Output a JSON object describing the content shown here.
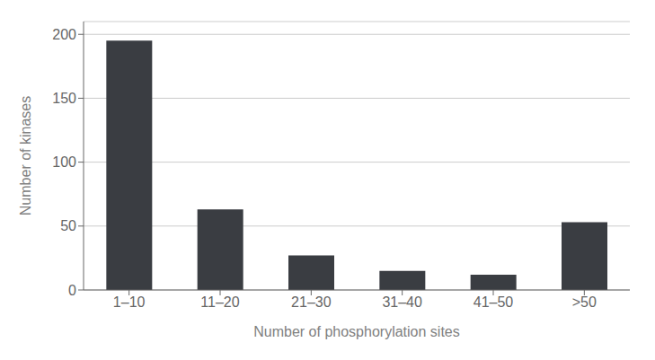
{
  "chart_data": {
    "type": "bar",
    "categories": [
      "1–10",
      "11–20",
      "21–30",
      "31–40",
      "41–50",
      ">50"
    ],
    "values": [
      195,
      63,
      27,
      15,
      12,
      53
    ],
    "color": "#3a3d42",
    "xlabel": "Number of phosphorylation sites",
    "ylabel": "Number of kinases",
    "ylim": [
      0,
      210
    ],
    "yticks": [
      0,
      50,
      100,
      150,
      200
    ],
    "grid": true
  }
}
